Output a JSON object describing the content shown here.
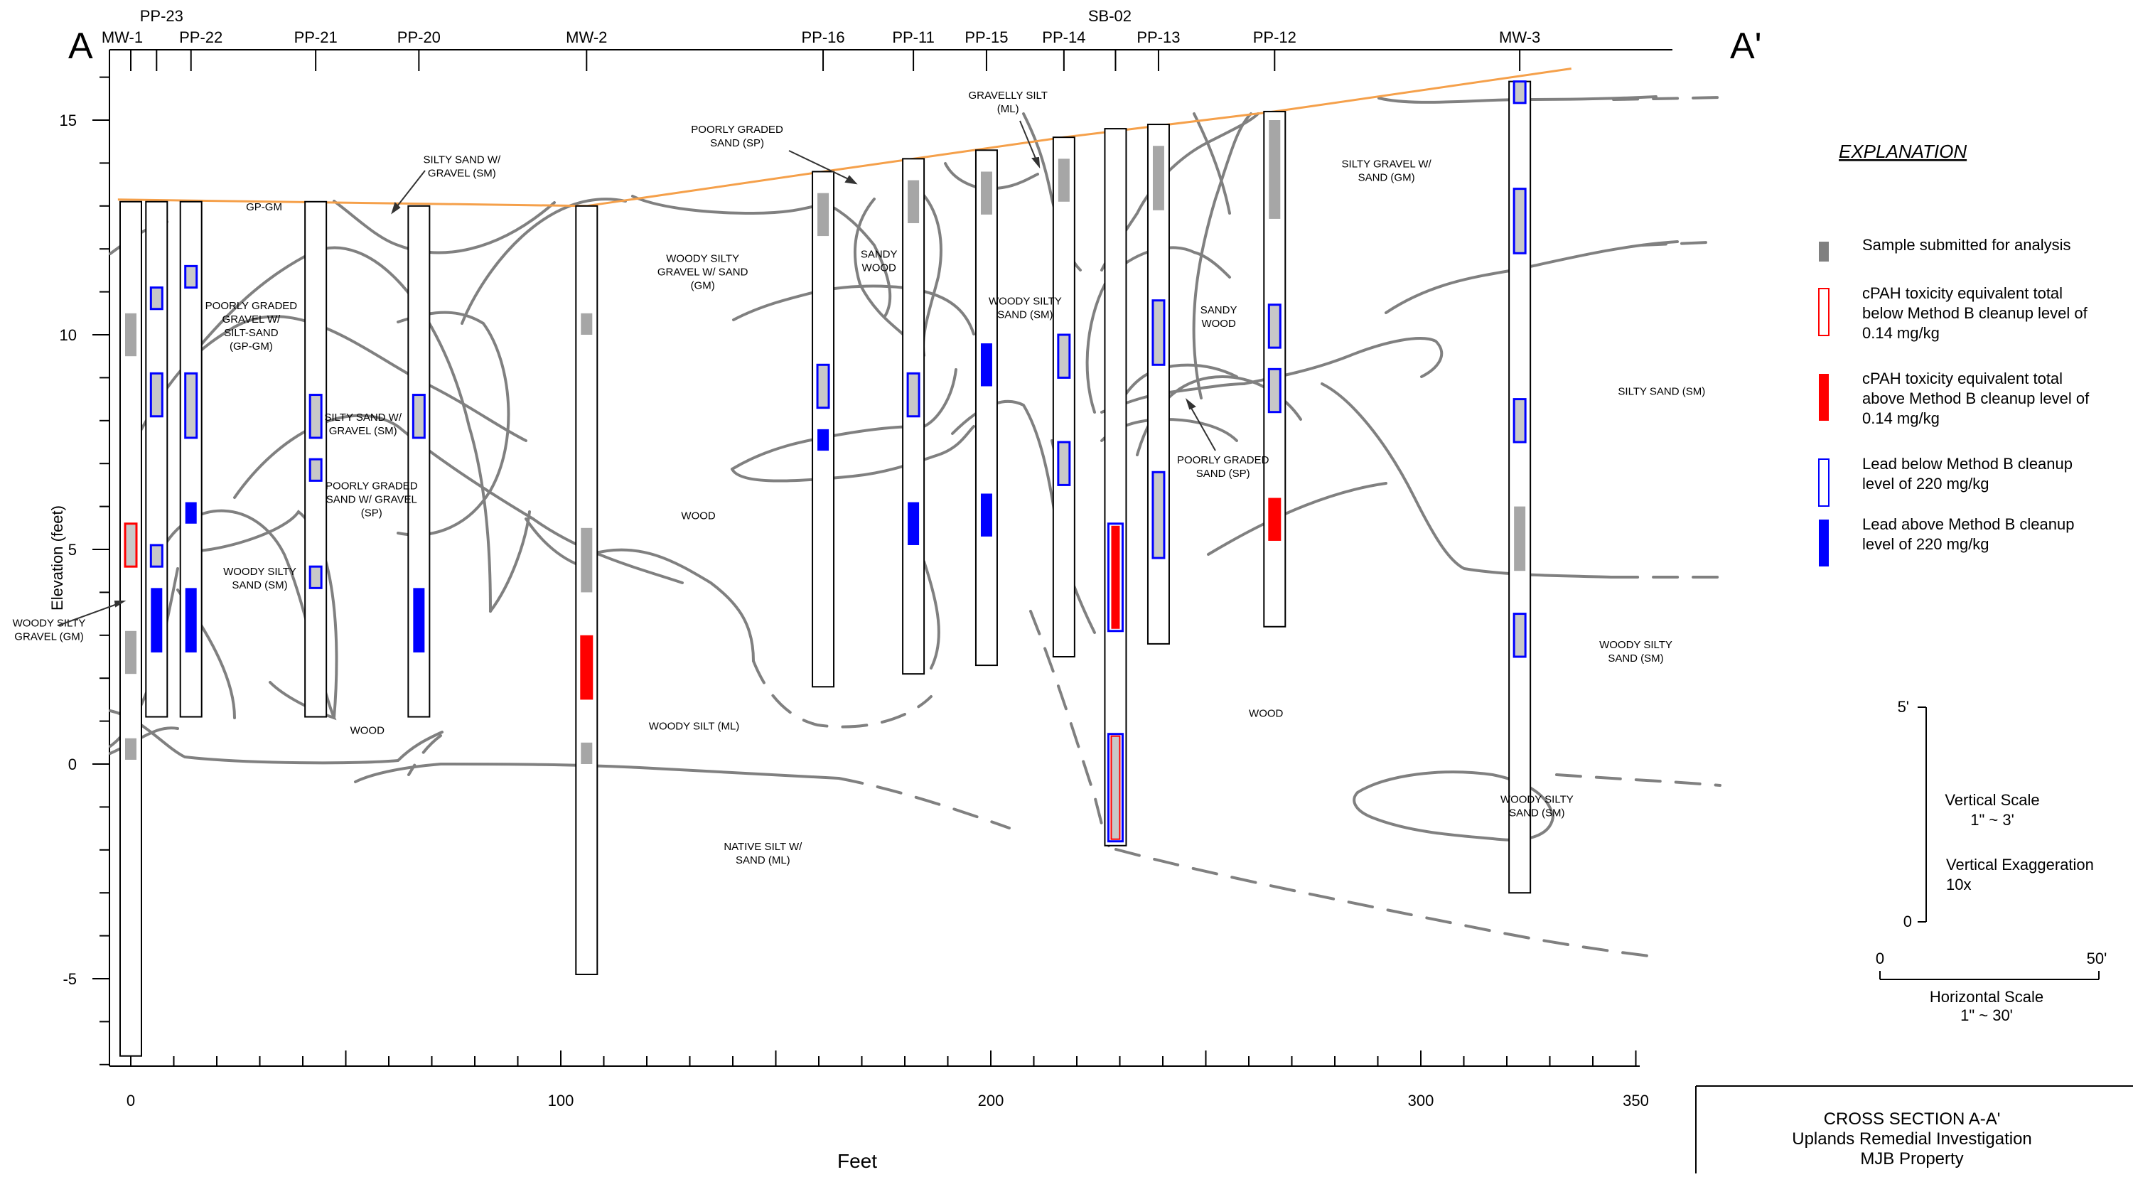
{
  "section": {
    "left_marker": "A",
    "right_marker": "A'",
    "y_axis_label": "Elevation (feet)",
    "x_axis_label": "Feet",
    "y_ticks": [
      "15",
      "10",
      "5",
      "0",
      "-5"
    ],
    "x_ticks": [
      "0",
      "100",
      "200",
      "300",
      "350"
    ]
  },
  "wells": [
    {
      "name": "MW-1",
      "x": 0,
      "top": 13.1,
      "bottom": -6.8
    },
    {
      "name": "PP-23",
      "x": 6,
      "top": 13.1,
      "bottom": 1.1
    },
    {
      "name": "PP-22",
      "x": 14,
      "top": 13.1,
      "bottom": 1.1
    },
    {
      "name": "PP-21",
      "x": 43,
      "top": 13.1,
      "bottom": 1.1
    },
    {
      "name": "PP-20",
      "x": 67,
      "top": 13.0,
      "bottom": 1.1
    },
    {
      "name": "MW-2",
      "x": 106,
      "top": 13.0,
      "bottom": -4.9
    },
    {
      "name": "PP-16",
      "x": 161,
      "top": 13.8,
      "bottom": 1.8
    },
    {
      "name": "PP-11",
      "x": 182,
      "top": 14.1,
      "bottom": 2.1
    },
    {
      "name": "PP-15",
      "x": 199,
      "top": 14.3,
      "bottom": 2.3
    },
    {
      "name": "PP-14",
      "x": 217,
      "top": 14.6,
      "bottom": 2.5
    },
    {
      "name": "SB-02",
      "x": 229,
      "top": 14.8,
      "bottom": -1.9
    },
    {
      "name": "PP-13",
      "x": 239,
      "top": 14.9,
      "bottom": 2.8
    },
    {
      "name": "PP-12",
      "x": 266,
      "top": 15.2,
      "bottom": 3.2
    },
    {
      "name": "MW-3",
      "x": 323,
      "top": 15.9,
      "bottom": -3.0
    }
  ],
  "samples": [
    {
      "well": "MW-1",
      "top": 10.5,
      "bottom": 9.5,
      "type": "sample"
    },
    {
      "well": "MW-1",
      "top": 5.6,
      "bottom": 4.6,
      "type": "cpah_below"
    },
    {
      "well": "MW-1",
      "top": 3.1,
      "bottom": 2.1,
      "type": "sample"
    },
    {
      "well": "MW-1",
      "top": 0.6,
      "bottom": 0.1,
      "type": "sample"
    },
    {
      "well": "PP-23",
      "top": 11.1,
      "bottom": 10.6,
      "type": "lead_below"
    },
    {
      "well": "PP-23",
      "top": 9.1,
      "bottom": 8.1,
      "type": "lead_below"
    },
    {
      "well": "PP-23",
      "top": 5.1,
      "bottom": 4.6,
      "type": "lead_below"
    },
    {
      "well": "PP-23",
      "top": 4.1,
      "bottom": 2.6,
      "type": "lead_above"
    },
    {
      "well": "PP-22",
      "top": 11.6,
      "bottom": 11.1,
      "type": "lead_below"
    },
    {
      "well": "PP-22",
      "top": 9.1,
      "bottom": 7.6,
      "type": "lead_below"
    },
    {
      "well": "PP-22",
      "top": 6.1,
      "bottom": 5.6,
      "type": "lead_above"
    },
    {
      "well": "PP-22",
      "top": 4.1,
      "bottom": 2.6,
      "type": "lead_above"
    },
    {
      "well": "PP-21",
      "top": 8.6,
      "bottom": 7.6,
      "type": "lead_below"
    },
    {
      "well": "PP-21",
      "top": 7.1,
      "bottom": 6.6,
      "type": "lead_below"
    },
    {
      "well": "PP-21",
      "top": 4.6,
      "bottom": 4.1,
      "type": "lead_below"
    },
    {
      "well": "PP-20",
      "top": 8.6,
      "bottom": 7.6,
      "type": "lead_below"
    },
    {
      "well": "PP-20",
      "top": 4.1,
      "bottom": 2.6,
      "type": "lead_above"
    },
    {
      "well": "MW-2",
      "top": 10.5,
      "bottom": 10.0,
      "type": "sample"
    },
    {
      "well": "MW-2",
      "top": 5.5,
      "bottom": 4.0,
      "type": "sample"
    },
    {
      "well": "MW-2",
      "top": 3.0,
      "bottom": 1.5,
      "type": "cpah_above"
    },
    {
      "well": "MW-2",
      "top": 0.5,
      "bottom": 0.0,
      "type": "sample"
    },
    {
      "well": "PP-16",
      "top": 13.3,
      "bottom": 12.3,
      "type": "sample"
    },
    {
      "well": "PP-16",
      "top": 9.3,
      "bottom": 8.3,
      "type": "lead_below"
    },
    {
      "well": "PP-16",
      "top": 7.8,
      "bottom": 7.3,
      "type": "lead_above"
    },
    {
      "well": "PP-11",
      "top": 13.6,
      "bottom": 12.6,
      "type": "sample"
    },
    {
      "well": "PP-11",
      "top": 9.1,
      "bottom": 8.1,
      "type": "lead_below"
    },
    {
      "well": "PP-11",
      "top": 6.1,
      "bottom": 5.1,
      "type": "lead_above"
    },
    {
      "well": "PP-15",
      "top": 13.8,
      "bottom": 12.8,
      "type": "sample"
    },
    {
      "well": "PP-15",
      "top": 9.8,
      "bottom": 8.8,
      "type": "lead_above"
    },
    {
      "well": "PP-15",
      "top": 6.3,
      "bottom": 5.3,
      "type": "lead_above"
    },
    {
      "well": "PP-14",
      "top": 14.1,
      "bottom": 13.1,
      "type": "sample"
    },
    {
      "well": "PP-14",
      "top": 10.0,
      "bottom": 9.0,
      "type": "lead_below"
    },
    {
      "well": "PP-14",
      "top": 7.5,
      "bottom": 6.5,
      "type": "lead_below"
    },
    {
      "well": "SB-02",
      "top": 5.6,
      "bottom": 3.1,
      "type": "cpah_above_lead_below"
    },
    {
      "well": "SB-02",
      "top": 0.7,
      "bottom": -1.8,
      "type": "cpah_below_lead_below"
    },
    {
      "well": "PP-13",
      "top": 14.4,
      "bottom": 12.9,
      "type": "sample"
    },
    {
      "well": "PP-13",
      "top": 10.8,
      "bottom": 9.3,
      "type": "lead_below"
    },
    {
      "well": "PP-13",
      "top": 6.8,
      "bottom": 4.8,
      "type": "lead_below"
    },
    {
      "well": "PP-12",
      "top": 15.0,
      "bottom": 12.7,
      "type": "sample"
    },
    {
      "well": "PP-12",
      "top": 10.7,
      "bottom": 9.7,
      "type": "lead_below"
    },
    {
      "well": "PP-12",
      "top": 9.2,
      "bottom": 8.2,
      "type": "lead_below"
    },
    {
      "well": "PP-12",
      "top": 6.2,
      "bottom": 5.2,
      "type": "cpah_above"
    },
    {
      "well": "MW-3",
      "top": 15.9,
      "bottom": 15.4,
      "type": "lead_below"
    },
    {
      "well": "MW-3",
      "top": 13.4,
      "bottom": 11.9,
      "type": "lead_below"
    },
    {
      "well": "MW-3",
      "top": 8.5,
      "bottom": 7.5,
      "type": "lead_below"
    },
    {
      "well": "MW-3",
      "top": 6.0,
      "bottom": 4.5,
      "type": "sample"
    },
    {
      "well": "MW-3",
      "top": 3.5,
      "bottom": 2.5,
      "type": "lead_below"
    }
  ],
  "unit_labels": [
    {
      "lines": [
        "GP-GM"
      ],
      "x": 31,
      "y": 12.9
    },
    {
      "lines": [
        "POORLY GRADED",
        "GRAVEL W/",
        "SILT-SAND",
        "(GP-GM)"
      ],
      "x": 28,
      "y": 10.6
    },
    {
      "lines": [
        "SILTY SAND W/",
        "GRAVEL (SM)"
      ],
      "x": 77,
      "y": 14.0
    },
    {
      "lines": [
        "SILTY SAND W/",
        "GRAVEL (SM)"
      ],
      "x": 54,
      "y": 8.0
    },
    {
      "lines": [
        "POORLY GRADED",
        "SAND W/ GRAVEL",
        "(SP)"
      ],
      "x": 56,
      "y": 6.4
    },
    {
      "lines": [
        "WOODY SILTY",
        "SAND (SM)"
      ],
      "x": 30,
      "y": 4.4
    },
    {
      "lines": [
        "WOODY SILTY",
        "GRAVEL (GM)"
      ],
      "x": -19,
      "y": 3.2
    },
    {
      "lines": [
        "WOOD"
      ],
      "x": 55,
      "y": 0.7
    },
    {
      "lines": [
        "WOODY SILTY",
        "GRAVEL W/ SAND",
        "(GM)"
      ],
      "x": 133,
      "y": 11.7
    },
    {
      "lines": [
        "POORLY GRADED",
        "SAND (SP)"
      ],
      "x": 141,
      "y": 14.7
    },
    {
      "lines": [
        "WOOD"
      ],
      "x": 132,
      "y": 5.7
    },
    {
      "lines": [
        "WOODY SILT (ML)"
      ],
      "x": 131,
      "y": 0.8
    },
    {
      "lines": [
        "NATIVE SILT W/",
        "SAND (ML)"
      ],
      "x": 147,
      "y": -2.0
    },
    {
      "lines": [
        "SANDY",
        "WOOD"
      ],
      "x": 174,
      "y": 11.8
    },
    {
      "lines": [
        "GRAVELLY SILT",
        "(ML)"
      ],
      "x": 204,
      "y": 15.5
    },
    {
      "lines": [
        "WOODY SILTY",
        "SAND (SM)"
      ],
      "x": 208,
      "y": 10.7
    },
    {
      "lines": [
        "SANDY",
        "WOOD"
      ],
      "x": 253,
      "y": 10.5
    },
    {
      "lines": [
        "POORLY GRADED",
        "SAND (SP)"
      ],
      "x": 254,
      "y": 7.0
    },
    {
      "lines": [
        "WOOD"
      ],
      "x": 264,
      "y": 1.1
    },
    {
      "lines": [
        "SILTY GRAVEL W/",
        "SAND (GM)"
      ],
      "x": 292,
      "y": 13.9
    },
    {
      "lines": [
        "SILTY SAND (SM)"
      ],
      "x": 356,
      "y": 8.6
    },
    {
      "lines": [
        "WOODY SILTY",
        "SAND (SM)"
      ],
      "x": 350,
      "y": 2.7
    },
    {
      "lines": [
        "WOODY SILTY",
        "SAND (SM)"
      ],
      "x": 327,
      "y": -0.9
    }
  ],
  "legend": {
    "title": "EXPLANATION",
    "items": [
      {
        "type": "sample",
        "lines": [
          "Sample submitted for analysis"
        ]
      },
      {
        "type": "cpah_below",
        "lines": [
          "cPAH toxicity equivalent total",
          "below Method B cleanup level of",
          "0.14 mg/kg"
        ]
      },
      {
        "type": "cpah_above",
        "lines": [
          "cPAH toxicity equivalent total",
          "above Method B cleanup level of",
          "0.14 mg/kg"
        ]
      },
      {
        "type": "lead_below",
        "lines": [
          "Lead below Method B cleanup",
          "level of 220 mg/kg"
        ]
      },
      {
        "type": "lead_above",
        "lines": [
          "Lead above Method B cleanup",
          "level of 220 mg/kg"
        ]
      }
    ]
  },
  "scale": {
    "vertical_top": "5'",
    "vertical_bottom": "0",
    "vertical_scale_label": "Vertical Scale",
    "vertical_scale_value": "1\" ~ 3'",
    "exaggeration_label": "Vertical Exaggeration",
    "exaggeration_value": "10x",
    "horizontal_left": "0",
    "horizontal_right": "50'",
    "horizontal_scale_label": "Horizontal Scale",
    "horizontal_scale_value": "1\" ~ 30'"
  },
  "title_block": {
    "line1": "CROSS SECTION A-A'",
    "line2": "Uplands Remedial Investigation",
    "line3": "MJB Property"
  },
  "colors": {
    "sample_gray": "#a6a6a6",
    "cpah_red": "#ff0000",
    "lead_blue": "#0000ff",
    "ground_surface": "#f5a04a",
    "contact_gray": "#808080"
  }
}
